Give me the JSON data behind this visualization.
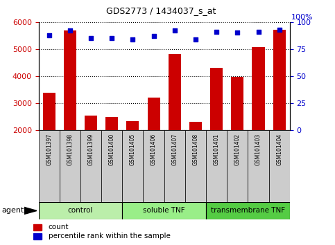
{
  "title": "GDS2773 / 1434037_s_at",
  "samples": [
    "GSM101397",
    "GSM101398",
    "GSM101399",
    "GSM101400",
    "GSM101405",
    "GSM101406",
    "GSM101407",
    "GSM101408",
    "GSM101401",
    "GSM101402",
    "GSM101403",
    "GSM101404"
  ],
  "counts": [
    3380,
    5680,
    2520,
    2480,
    2330,
    3210,
    4820,
    2310,
    4290,
    3960,
    5070,
    5720
  ],
  "percentiles": [
    88,
    92,
    85,
    85,
    84,
    87,
    92,
    84,
    91,
    90,
    91,
    93
  ],
  "ylim_left": [
    2000,
    6000
  ],
  "ylim_right": [
    0,
    100
  ],
  "yticks_left": [
    2000,
    3000,
    4000,
    5000,
    6000
  ],
  "yticks_right": [
    0,
    25,
    50,
    75,
    100
  ],
  "bar_color": "#cc0000",
  "dot_color": "#0000cc",
  "bar_width": 0.6,
  "groups": [
    {
      "label": "control",
      "start": 0,
      "end": 4,
      "color": "#bbeeaa"
    },
    {
      "label": "soluble TNF",
      "start": 4,
      "end": 8,
      "color": "#99ee88"
    },
    {
      "label": "transmembrane TNF",
      "start": 8,
      "end": 12,
      "color": "#55cc44"
    }
  ],
  "sample_box_color": "#cccccc",
  "legend_count_color": "#cc0000",
  "legend_percentile_color": "#0000cc",
  "xlabel_agent": "agent",
  "ylabel_left_color": "#cc0000",
  "ylabel_right_color": "#0000cc",
  "right_axis_label": "100%"
}
